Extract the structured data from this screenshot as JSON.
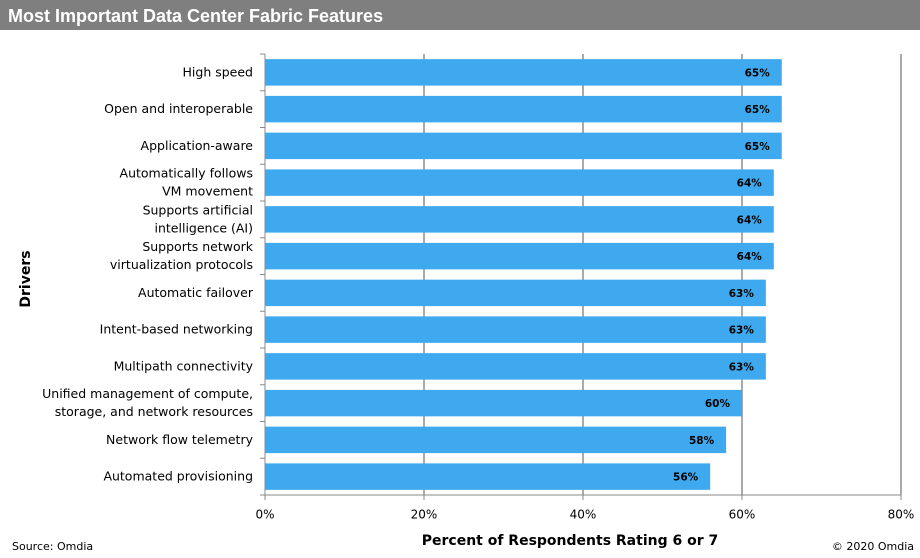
{
  "chart_data": {
    "type": "bar",
    "orientation": "horizontal",
    "title": "Most Important Data Center Fabric Features",
    "categories": [
      "High speed",
      "Open and interoperable",
      "Application-aware",
      "Automatically follows\nVM movement",
      "Supports artificial\nintelligence (AI)",
      "Supports network\nvirtualization protocols",
      "Automatic failover",
      "Intent-based networking",
      "Multipath connectivity",
      "Unified management of compute,\nstorage, and network resources",
      "Network flow telemetry",
      "Automated provisioning"
    ],
    "values": [
      65,
      65,
      65,
      64,
      64,
      64,
      63,
      63,
      63,
      60,
      58,
      56
    ],
    "value_labels": [
      "65%",
      "65%",
      "65%",
      "64%",
      "64%",
      "64%",
      "63%",
      "63%",
      "63%",
      "60%",
      "58%",
      "56%"
    ],
    "color": "#3ea9ef",
    "xlim": [
      0,
      80
    ],
    "xticks": [
      {
        "value": 0,
        "label": "0%"
      },
      {
        "value": 20,
        "label": "20%"
      },
      {
        "value": 40,
        "label": "40%"
      },
      {
        "value": 60,
        "label": "60%"
      },
      {
        "value": 80,
        "label": "80%"
      }
    ],
    "grid": true,
    "xlabel": "Percent of Respondents Rating 6 or 7",
    "ylabel": "Drivers",
    "source": "Source: Omdia",
    "copyright": "© 2020 Omdia"
  }
}
